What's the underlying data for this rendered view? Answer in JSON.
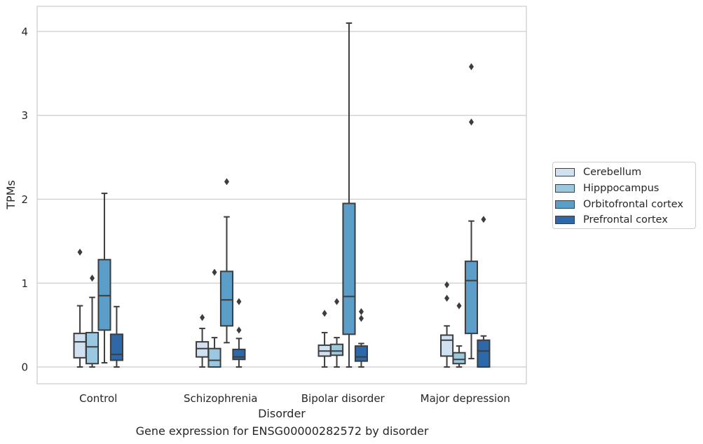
{
  "chart_data": {
    "type": "box",
    "title": "Gene expression for ENSG00000282572 by disorder",
    "xlabel": "Disorder",
    "ylabel": "TPMs",
    "ylim": [
      -0.2,
      4.3
    ],
    "yticks": [
      0,
      1,
      2,
      3,
      4
    ],
    "grid": "horizontal",
    "legend_position": "right",
    "categories": [
      "Control",
      "Schizophrenia",
      "Bipolar disorder",
      "Major depression"
    ],
    "series": [
      {
        "name": "Cerebellum",
        "color": "#d0e1f2",
        "boxes": [
          {
            "min": 0.0,
            "q1": 0.11,
            "median": 0.3,
            "q3": 0.4,
            "max": 0.73,
            "outliers": [
              1.37
            ]
          },
          {
            "min": 0.0,
            "q1": 0.12,
            "median": 0.22,
            "q3": 0.3,
            "max": 0.46,
            "outliers": [
              0.59
            ]
          },
          {
            "min": 0.0,
            "q1": 0.13,
            "median": 0.19,
            "q3": 0.26,
            "max": 0.41,
            "outliers": [
              0.64
            ]
          },
          {
            "min": 0.0,
            "q1": 0.13,
            "median": 0.32,
            "q3": 0.38,
            "max": 0.49,
            "outliers": [
              0.82,
              0.98
            ]
          }
        ]
      },
      {
        "name": "Hipppocampus",
        "color": "#9ac8e0",
        "boxes": [
          {
            "min": 0.0,
            "q1": 0.04,
            "median": 0.24,
            "q3": 0.41,
            "max": 0.83,
            "outliers": [
              1.06
            ]
          },
          {
            "min": 0.0,
            "q1": 0.0,
            "median": 0.08,
            "q3": 0.22,
            "max": 0.35,
            "outliers": [
              1.13
            ]
          },
          {
            "min": 0.0,
            "q1": 0.14,
            "median": 0.19,
            "q3": 0.27,
            "max": 0.35,
            "outliers": [
              0.78
            ]
          },
          {
            "min": 0.0,
            "q1": 0.04,
            "median": 0.09,
            "q3": 0.17,
            "max": 0.25,
            "outliers": [
              0.73
            ]
          }
        ]
      },
      {
        "name": "Orbitofrontal cortex",
        "color": "#5a9ec9",
        "boxes": [
          {
            "min": 0.05,
            "q1": 0.44,
            "median": 0.85,
            "q3": 1.28,
            "max": 2.07,
            "outliers": []
          },
          {
            "min": 0.29,
            "q1": 0.49,
            "median": 0.8,
            "q3": 1.14,
            "max": 1.79,
            "outliers": [
              2.21
            ]
          },
          {
            "min": 0.0,
            "q1": 0.39,
            "median": 0.84,
            "q3": 1.95,
            "max": 4.1,
            "outliers": []
          },
          {
            "min": 0.1,
            "q1": 0.4,
            "median": 1.03,
            "q3": 1.26,
            "max": 1.74,
            "outliers": [
              2.92,
              3.58
            ]
          }
        ]
      },
      {
        "name": "Prefrontal cortex",
        "color": "#2d69a8",
        "boxes": [
          {
            "min": 0.0,
            "q1": 0.08,
            "median": 0.15,
            "q3": 0.39,
            "max": 0.72,
            "outliers": []
          },
          {
            "min": 0.0,
            "q1": 0.09,
            "median": 0.12,
            "q3": 0.21,
            "max": 0.34,
            "outliers": [
              0.44,
              0.78
            ]
          },
          {
            "min": 0.0,
            "q1": 0.07,
            "median": 0.12,
            "q3": 0.25,
            "max": 0.28,
            "outliers": [
              0.58,
              0.66
            ]
          },
          {
            "min": 0.0,
            "q1": 0.0,
            "median": 0.19,
            "q3": 0.32,
            "max": 0.37,
            "outliers": [
              1.76
            ]
          }
        ]
      }
    ]
  }
}
